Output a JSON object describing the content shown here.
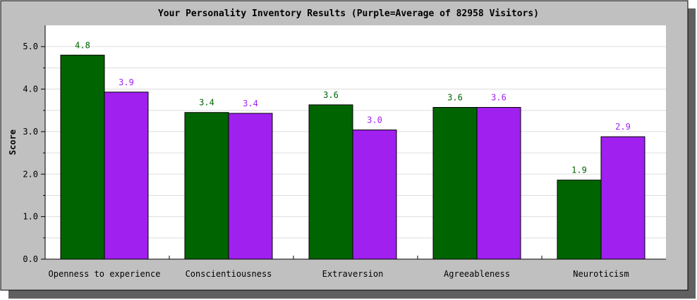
{
  "chart_data": {
    "type": "bar",
    "title": "Your Personality Inventory Results (Purple=Average of 82958 Visitors)",
    "xlabel": "",
    "ylabel": "Score",
    "ylim": [
      0,
      5.5
    ],
    "yticks": [
      "0.0",
      "1.0",
      "2.0",
      "3.0",
      "4.0",
      "5.0"
    ],
    "grid": true,
    "legend": "none",
    "categories": [
      "Openness to experience",
      "Conscientiousness",
      "Extraversion",
      "Agreeableness",
      "Neuroticism"
    ],
    "series": [
      {
        "values": [
          4.8,
          3.45,
          3.63,
          3.57,
          1.86
        ],
        "labels": [
          "4.8",
          "3.4",
          "3.6",
          "3.6",
          "1.9"
        ],
        "color": "#006400"
      },
      {
        "values": [
          3.93,
          3.43,
          3.04,
          3.57,
          2.88
        ],
        "labels": [
          "3.9",
          "3.4",
          "3.0",
          "3.6",
          "2.9"
        ],
        "color": "#A020F0"
      }
    ],
    "colors": {
      "frame_background": "#C0C0C0",
      "plot_background": "#FFFFFF",
      "shadow": "#606060",
      "grid": "#DDDDDD"
    }
  }
}
